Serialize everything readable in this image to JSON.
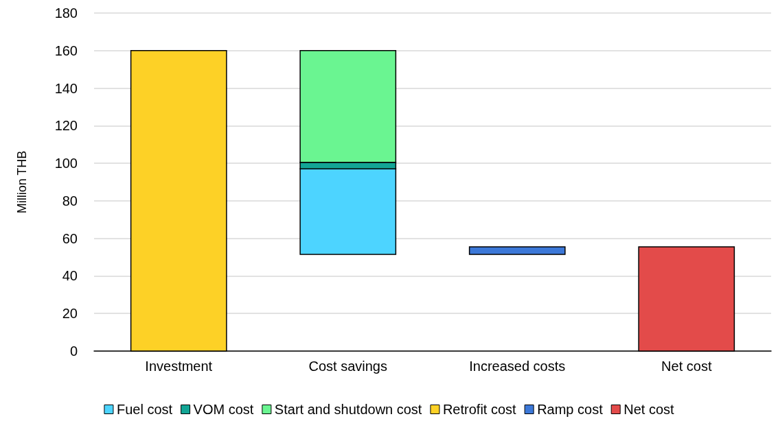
{
  "chart_data": {
    "type": "bar",
    "ylabel": "Million THB",
    "categories": [
      "Investment",
      "Cost savings",
      "Increased costs",
      "Net cost"
    ],
    "series": [
      {
        "name": "Fuel cost",
        "color": "#4dd4ff",
        "values": [
          null,
          45.5,
          null,
          null
        ],
        "base": [
          null,
          51.5,
          null,
          null
        ]
      },
      {
        "name": "VOM cost",
        "color": "#12a595",
        "values": [
          null,
          3.5,
          null,
          null
        ],
        "base": [
          null,
          97,
          null,
          null
        ]
      },
      {
        "name": "Start and shutdown cost",
        "color": "#6af591",
        "values": [
          null,
          59.5,
          null,
          null
        ],
        "base": [
          null,
          100.5,
          null,
          null
        ]
      },
      {
        "name": "Retrofit cost",
        "color": "#fdd126",
        "values": [
          160,
          null,
          null,
          null
        ],
        "base": [
          0,
          null,
          null,
          null
        ]
      },
      {
        "name": "Ramp cost",
        "color": "#3c78d8",
        "values": [
          null,
          null,
          4,
          null
        ],
        "base": [
          null,
          null,
          51.5,
          null
        ]
      },
      {
        "name": "Net cost",
        "color": "#e34b4a",
        "values": [
          null,
          null,
          null,
          55.5
        ],
        "base": [
          null,
          null,
          null,
          0
        ]
      }
    ],
    "ylim": [
      0,
      180
    ],
    "yticks": [
      0,
      20,
      40,
      60,
      80,
      100,
      120,
      140,
      160,
      180
    ],
    "grid": "y",
    "legend": "bottom"
  }
}
